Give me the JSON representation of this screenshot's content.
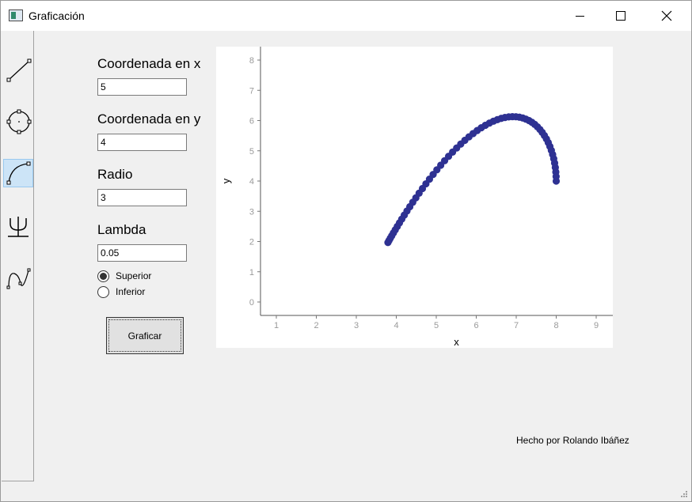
{
  "window": {
    "title": "Graficación"
  },
  "sidebar": {
    "tools": [
      {
        "name": "line-tool",
        "active": false
      },
      {
        "name": "circle-tool",
        "active": false
      },
      {
        "name": "arc-tool",
        "active": true
      },
      {
        "name": "psi-tool",
        "active": false
      },
      {
        "name": "curve-tool",
        "active": false
      }
    ]
  },
  "form": {
    "x_label": "Coordenada en x",
    "x_value": "5",
    "y_label": "Coordenada en y",
    "y_value": "4",
    "radius_label": "Radio",
    "radius_value": "3",
    "lambda_label": "Lambda",
    "lambda_value": "0.05",
    "radio_superior": "Superior",
    "radio_inferior": "Inferior",
    "selected": "Superior",
    "button_label": "Graficar"
  },
  "footer": {
    "credit": "Hecho por Rolando Ibáñez"
  },
  "chart_data": {
    "type": "scatter",
    "title": "",
    "xlabel": "x",
    "ylabel": "y",
    "xlim": [
      0.6,
      9.4
    ],
    "ylim": [
      -0.4,
      8.4
    ],
    "xticks": [
      1,
      2,
      3,
      4,
      5,
      6,
      7,
      8,
      9
    ],
    "yticks": [
      0,
      1,
      2,
      3,
      4,
      5,
      6,
      7,
      8
    ],
    "color": "#2e3192",
    "series": [
      {
        "x": [
          8.0,
          7.9975,
          7.99,
          7.9776,
          7.9601,
          7.9378,
          7.9106,
          7.8787,
          7.8421,
          7.801,
          7.7552,
          7.7051,
          7.6507,
          7.5922,
          7.5297,
          7.4632,
          7.3931,
          7.3195,
          7.2424,
          7.1622,
          7.079,
          6.993,
          6.9043,
          6.8133,
          6.72,
          6.6247,
          6.5276,
          6.429,
          6.3291,
          6.228,
          6.1261,
          6.0235,
          5.9206,
          5.8175,
          5.7144,
          5.6117,
          5.5095,
          5.4082,
          5.3079,
          5.2089,
          5.1114,
          5.0156,
          4.9218,
          4.8302,
          4.7409,
          4.6543,
          4.5705,
          4.4897,
          4.4121,
          4.338,
          4.2674,
          4.2005,
          4.1376,
          4.0788,
          4.0241,
          3.9738,
          3.928,
          3.8867,
          3.8501,
          3.8183,
          3.7913
        ],
        "y": [
          4.0,
          4.15,
          4.2995,
          4.4478,
          4.5939,
          4.7375,
          4.8777,
          5.014,
          5.1453,
          5.2711,
          5.3906,
          5.5031,
          5.6081,
          5.7049,
          5.7929,
          5.8716,
          5.9405,
          5.9992,
          6.0472,
          6.0843,
          6.1104,
          6.1252,
          6.1287,
          6.1209,
          6.1017,
          6.0715,
          6.0303,
          5.9784,
          5.9161,
          5.8437,
          5.7616,
          5.6703,
          5.5702,
          5.4618,
          5.3458,
          5.2226,
          5.0929,
          4.9575,
          4.8168,
          4.6718,
          4.5231,
          4.3715,
          4.2178,
          4.0628,
          3.9073,
          3.7521,
          3.5981,
          3.446,
          3.2965,
          3.1505,
          3.0087,
          2.8718,
          2.7405,
          2.6156,
          2.4976,
          2.3871,
          2.2847,
          2.191,
          2.1063,
          2.0313,
          1.9662
        ]
      }
    ]
  }
}
